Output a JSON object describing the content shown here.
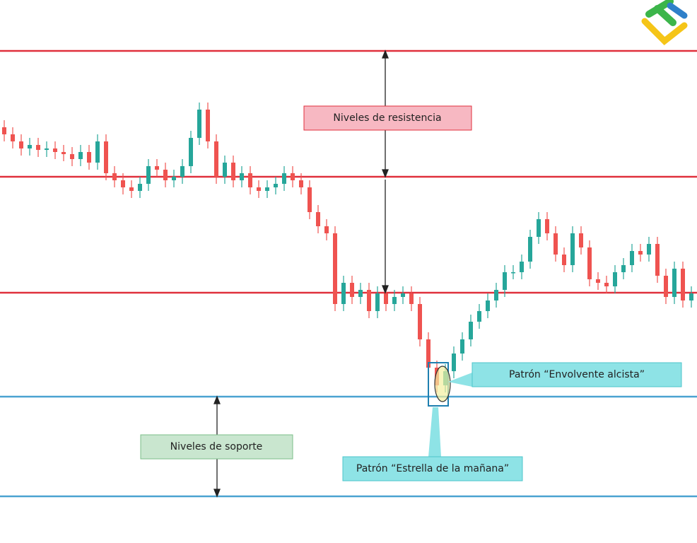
{
  "chart_data": {
    "type": "candlestick",
    "ylim": [
      0,
      768
    ],
    "up_color": "#26a69a",
    "down_color": "#ef5350",
    "open": [
      588,
      578,
      568,
      558,
      563,
      556,
      558,
      553,
      550,
      543,
      553,
      538,
      568,
      523,
      513,
      503,
      498,
      508,
      533,
      528,
      513,
      518,
      533,
      573,
      613,
      568,
      518,
      538,
      513,
      523,
      503,
      498,
      503,
      508,
      523,
      513,
      503,
      468,
      448,
      438,
      338,
      368,
      348,
      358,
      328,
      353,
      338,
      348,
      353,
      338,
      288,
      248,
      223,
      243,
      268,
      288,
      313,
      328,
      343,
      358,
      383,
      383,
      398,
      433,
      458,
      438,
      408,
      393,
      438,
      418,
      373,
      368,
      363,
      383,
      393,
      413,
      408,
      423,
      378,
      348,
      388,
      343
    ],
    "high": [
      598,
      588,
      578,
      573,
      573,
      568,
      568,
      563,
      560,
      563,
      563,
      578,
      578,
      533,
      523,
      513,
      518,
      543,
      543,
      538,
      528,
      543,
      583,
      623,
      623,
      578,
      548,
      548,
      533,
      533,
      513,
      513,
      518,
      533,
      533,
      523,
      513,
      478,
      458,
      448,
      378,
      378,
      368,
      368,
      363,
      363,
      358,
      363,
      363,
      348,
      298,
      258,
      253,
      278,
      298,
      323,
      338,
      353,
      368,
      393,
      393,
      408,
      443,
      468,
      468,
      448,
      418,
      448,
      448,
      428,
      383,
      378,
      393,
      403,
      423,
      423,
      433,
      433,
      388,
      398,
      398,
      363
    ],
    "low": [
      568,
      558,
      548,
      548,
      546,
      546,
      543,
      540,
      533,
      533,
      528,
      528,
      513,
      503,
      493,
      488,
      488,
      498,
      518,
      503,
      503,
      508,
      523,
      563,
      558,
      508,
      508,
      503,
      503,
      493,
      488,
      488,
      493,
      498,
      503,
      493,
      458,
      438,
      428,
      328,
      328,
      338,
      338,
      318,
      318,
      328,
      328,
      338,
      328,
      278,
      238,
      213,
      213,
      233,
      258,
      278,
      303,
      318,
      333,
      348,
      373,
      373,
      388,
      423,
      428,
      398,
      383,
      383,
      408,
      363,
      358,
      353,
      353,
      373,
      383,
      398,
      398,
      368,
      338,
      338,
      333,
      333
    ],
    "close": [
      578,
      568,
      558,
      563,
      556,
      558,
      553,
      550,
      543,
      553,
      538,
      568,
      523,
      513,
      503,
      498,
      508,
      533,
      528,
      513,
      518,
      533,
      573,
      613,
      568,
      518,
      538,
      513,
      523,
      503,
      498,
      503,
      508,
      523,
      513,
      503,
      468,
      448,
      438,
      338,
      368,
      348,
      358,
      328,
      353,
      338,
      348,
      353,
      338,
      288,
      248,
      223,
      243,
      268,
      288,
      313,
      328,
      343,
      358,
      383,
      383,
      398,
      433,
      458,
      438,
      408,
      393,
      438,
      418,
      373,
      368,
      363,
      383,
      393,
      413,
      408,
      423,
      378,
      348,
      388,
      343,
      353
    ],
    "levels": [
      {
        "name": "Niveles de resistencia",
        "color": "#e0303c",
        "values": [
          696,
          518,
          354
        ]
      },
      {
        "name": "Niveles de soporte",
        "color": "#4aa3d1",
        "values": [
          207,
          66
        ]
      }
    ],
    "annotations": [
      "Patrón “Envolvente alcista”",
      "Patrón “Estrella de la mañana”"
    ]
  }
}
